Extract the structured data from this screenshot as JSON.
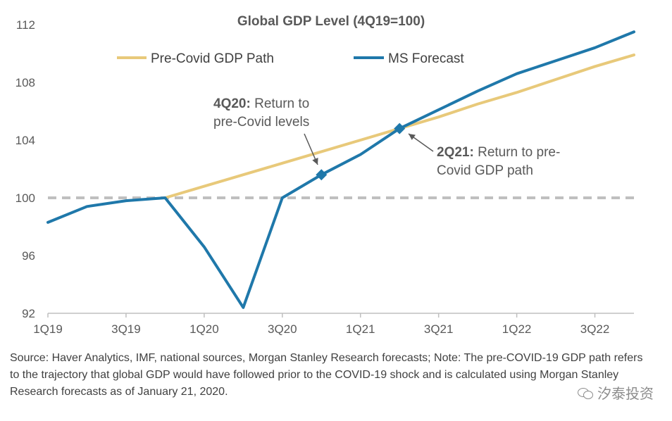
{
  "chart_data": {
    "type": "line",
    "title": "Global GDP Level (4Q19=100)",
    "categories": [
      "1Q19",
      "2Q19",
      "3Q19",
      "4Q19",
      "1Q20",
      "2Q20",
      "3Q20",
      "4Q20",
      "1Q21",
      "2Q21",
      "3Q21",
      "4Q21",
      "1Q22",
      "2Q22",
      "3Q22",
      "4Q22"
    ],
    "x_tick_labels": [
      "1Q19",
      "3Q19",
      "1Q20",
      "3Q20",
      "1Q21",
      "3Q21",
      "1Q22",
      "3Q22"
    ],
    "ylim": [
      92,
      112
    ],
    "yticks": [
      92,
      96,
      100,
      104,
      108,
      112
    ],
    "reference_line": {
      "y": 100,
      "style": "dashed",
      "color": "#BFBFBF"
    },
    "series": [
      {
        "name": "Pre-Covid GDP Path",
        "color": "#E8C97A",
        "x": [
          "4Q19",
          "1Q20",
          "2Q20",
          "3Q20",
          "4Q20",
          "1Q21",
          "2Q21",
          "3Q21",
          "4Q21",
          "1Q22",
          "2Q22",
          "3Q22",
          "4Q22"
        ],
        "values": [
          100,
          100.8,
          101.6,
          102.4,
          103.2,
          104.0,
          104.8,
          105.6,
          106.5,
          107.3,
          108.2,
          109.1,
          109.9
        ]
      },
      {
        "name": "MS Forecast",
        "color": "#1F78AA",
        "x": [
          "1Q19",
          "2Q19",
          "3Q19",
          "4Q19",
          "1Q20",
          "2Q20",
          "3Q20",
          "4Q20",
          "1Q21",
          "2Q21",
          "3Q21",
          "4Q21",
          "1Q22",
          "2Q22",
          "3Q22",
          "4Q22"
        ],
        "values": [
          98.3,
          99.4,
          99.8,
          100.0,
          96.6,
          92.4,
          100.0,
          101.6,
          103.0,
          104.8,
          106.1,
          107.4,
          108.6,
          109.5,
          110.4,
          111.5
        ]
      }
    ],
    "markers": [
      {
        "x": "4Q20",
        "y": 101.6,
        "shape": "diamond"
      },
      {
        "x": "2Q21",
        "y": 104.8,
        "shape": "diamond"
      }
    ],
    "annotations": [
      {
        "bold": "4Q20:",
        "text": " Return to",
        "line2": "pre-Covid levels",
        "target": "4Q20"
      },
      {
        "bold": "2Q21:",
        "text": " Return to pre-",
        "line2": "Covid GDP path",
        "target": "2Q21"
      }
    ],
    "legend_position": "top"
  },
  "source_note": "Source: Haver Analytics, IMF, national sources, Morgan Stanley Research forecasts; Note: The pre-COVID-19 GDP path refers to the trajectory that global GDP would have followed prior to the COVID-19 shock and is calculated using Morgan Stanley Research forecasts as of January 21, 2020.",
  "watermark": "汐泰投资"
}
